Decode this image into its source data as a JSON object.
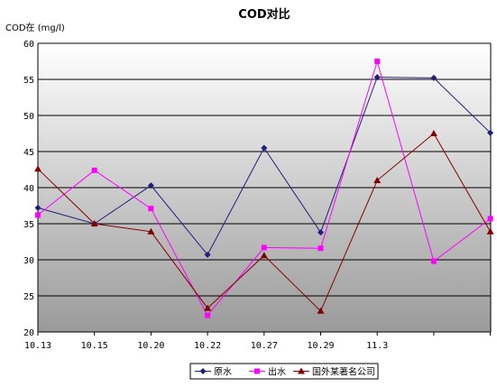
{
  "chart_data": {
    "type": "line",
    "title": "COD对比",
    "ylabel": "COD在 (mg/l)",
    "xlabel": "",
    "ylim": [
      20,
      60
    ],
    "yticks": [
      20,
      25,
      30,
      35,
      40,
      45,
      50,
      55,
      60
    ],
    "categories": [
      "10.13",
      "10.15",
      "10.20",
      "10.22",
      "10.27",
      "10.29",
      "11.3",
      "",
      ""
    ],
    "grid": true,
    "legend_position": "bottom",
    "series": [
      {
        "name": "原水",
        "color": "#1f1f7a",
        "marker": "diamond",
        "values": [
          37.2,
          35.0,
          40.3,
          30.7,
          45.5,
          33.8,
          55.3,
          55.2,
          47.6
        ]
      },
      {
        "name": "出水",
        "color": "#ff00ff",
        "marker": "square",
        "values": [
          36.2,
          42.4,
          37.1,
          22.3,
          31.7,
          31.6,
          57.5,
          29.8,
          35.7
        ]
      },
      {
        "name": "国外某著名公司",
        "color": "#800000",
        "marker": "triangle",
        "values": [
          42.6,
          35.0,
          33.9,
          23.3,
          30.6,
          22.9,
          41.0,
          47.5,
          33.9
        ]
      }
    ]
  }
}
